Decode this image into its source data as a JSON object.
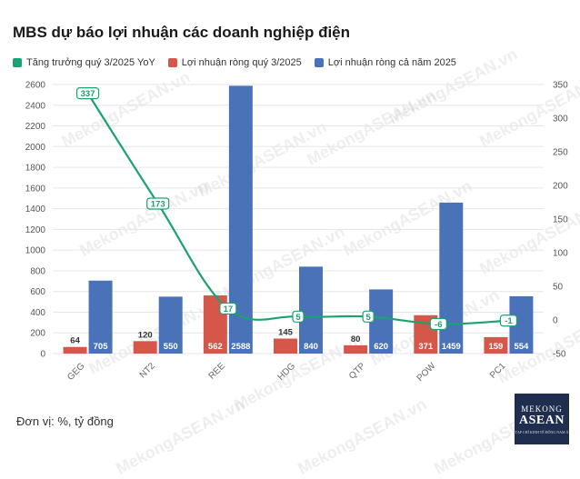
{
  "title": "MBS dự báo lợi nhuận các doanh nghiệp điện",
  "unit_note": "Đơn vị: %, tỷ đồng",
  "watermark": "MekongASEAN.vn",
  "logo": {
    "line1": "MEKONG",
    "line2": "ASEAN",
    "line3": "Tạp chí kinh tế Đông Nam Á"
  },
  "colors": {
    "growth": "#1aa36f",
    "q3": "#d4574a",
    "full": "#4a72b8"
  },
  "chart_data": {
    "type": "bar",
    "categories": [
      "GEG",
      "NT2",
      "REE",
      "HDG",
      "QTP",
      "POW",
      "PC1"
    ],
    "series": [
      {
        "name": "Tăng trưởng quý 3/2025 YoY",
        "type": "line",
        "axis": "right",
        "values": [
          337,
          173,
          17,
          5,
          5,
          -6,
          -1
        ]
      },
      {
        "name": "Lợi nhuận ròng quý 3/2025",
        "type": "bar",
        "axis": "left",
        "values": [
          64,
          120,
          562,
          145,
          80,
          371,
          159
        ]
      },
      {
        "name": "Lợi nhuận ròng cả năm 2025",
        "type": "bar",
        "axis": "left",
        "values": [
          705,
          550,
          2588,
          840,
          620,
          1459,
          554
        ]
      }
    ],
    "y_left": {
      "ticks": [
        "0",
        "200",
        "400",
        "600",
        "800",
        "1000",
        "1200",
        "1400",
        "1600",
        "1800",
        "2000",
        "2200",
        "2400",
        "2600"
      ],
      "range": [
        0,
        2600
      ]
    },
    "y_right": {
      "ticks": [
        "-50",
        "0",
        "50",
        "100",
        "150",
        "200",
        "250",
        "300",
        "350"
      ],
      "range": [
        -50,
        350
      ]
    },
    "grid": true,
    "legend_position": "top-left"
  }
}
